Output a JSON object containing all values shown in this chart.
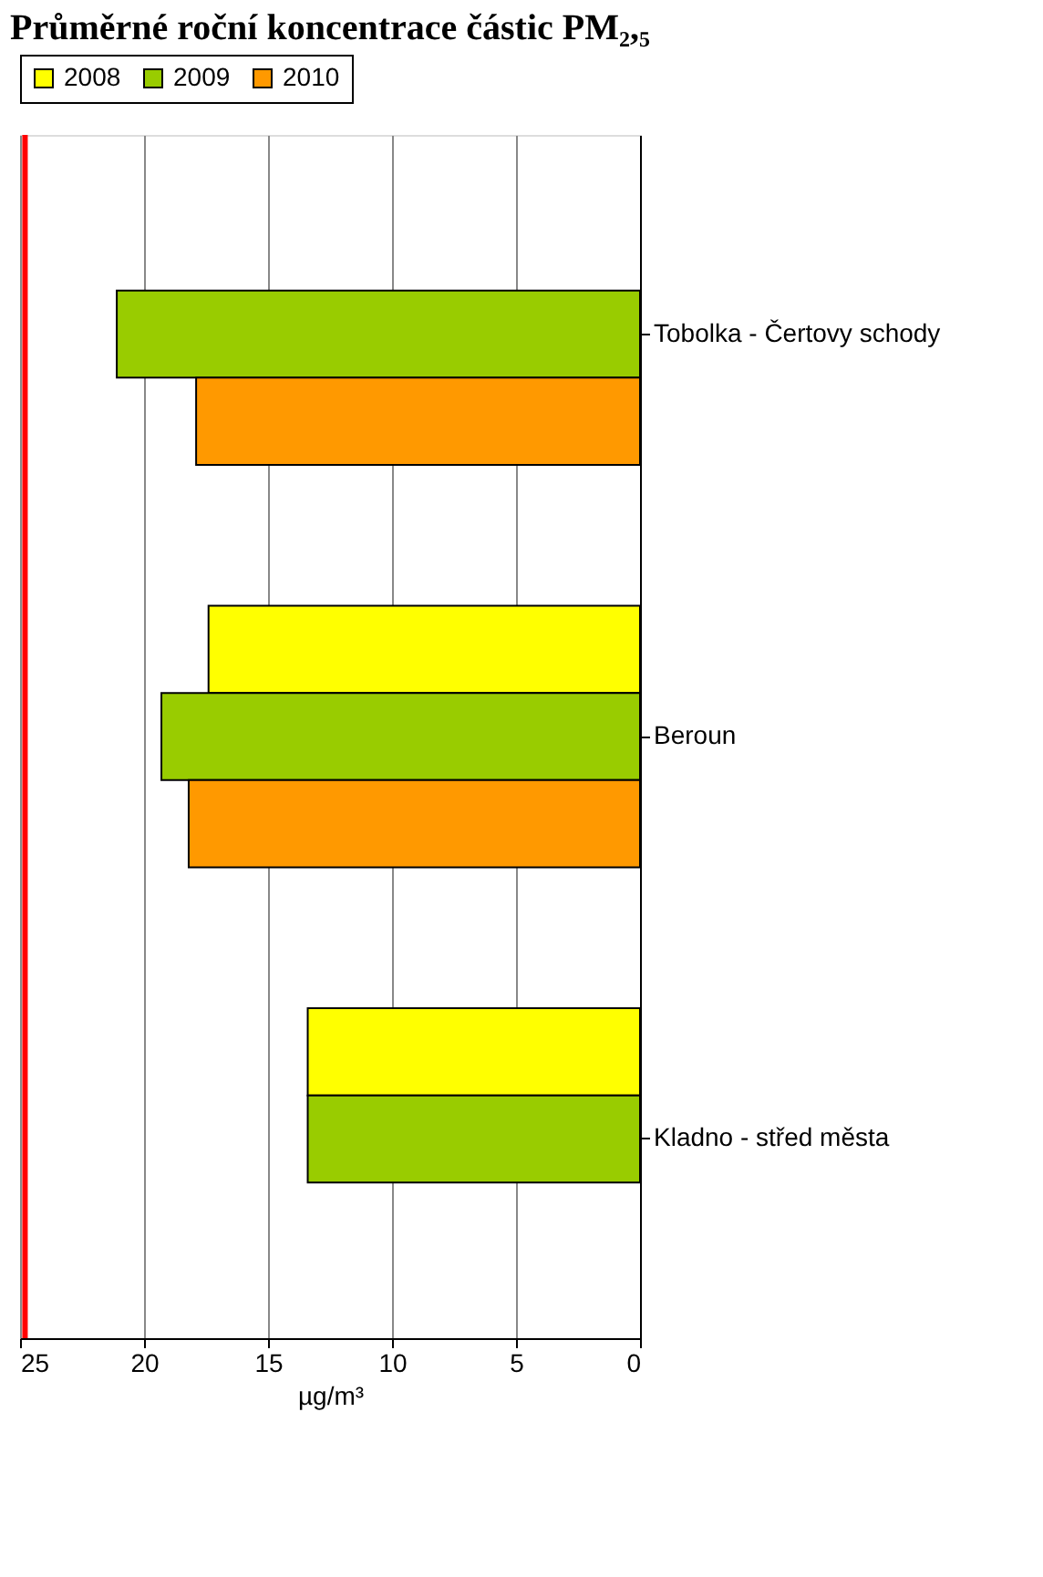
{
  "chart_data": {
    "type": "bar",
    "orientation": "horizontal",
    "title": "Průměrné roční koncentrace částic PM₂,₅",
    "xlabel": "µg/m³",
    "categories": [
      "Tobolka - Čertovy schody",
      "Beroun",
      "Kladno - střed města"
    ],
    "series": [
      {
        "name": "2008",
        "color": "#ffff00",
        "values": [
          null,
          17.4,
          13.4
        ]
      },
      {
        "name": "2009",
        "color": "#99cc00",
        "values": [
          21.1,
          19.3,
          13.4
        ]
      },
      {
        "name": "2010",
        "color": "#ff9900",
        "values": [
          17.9,
          18.2,
          null
        ]
      }
    ],
    "xlim": [
      25,
      0
    ],
    "xticks": [
      0,
      5,
      10,
      15,
      20,
      25
    ],
    "grid": "x",
    "legend": "top",
    "ref_lines": [
      {
        "axis": "x",
        "value": 24.8,
        "color": "#ff0000"
      }
    ]
  }
}
